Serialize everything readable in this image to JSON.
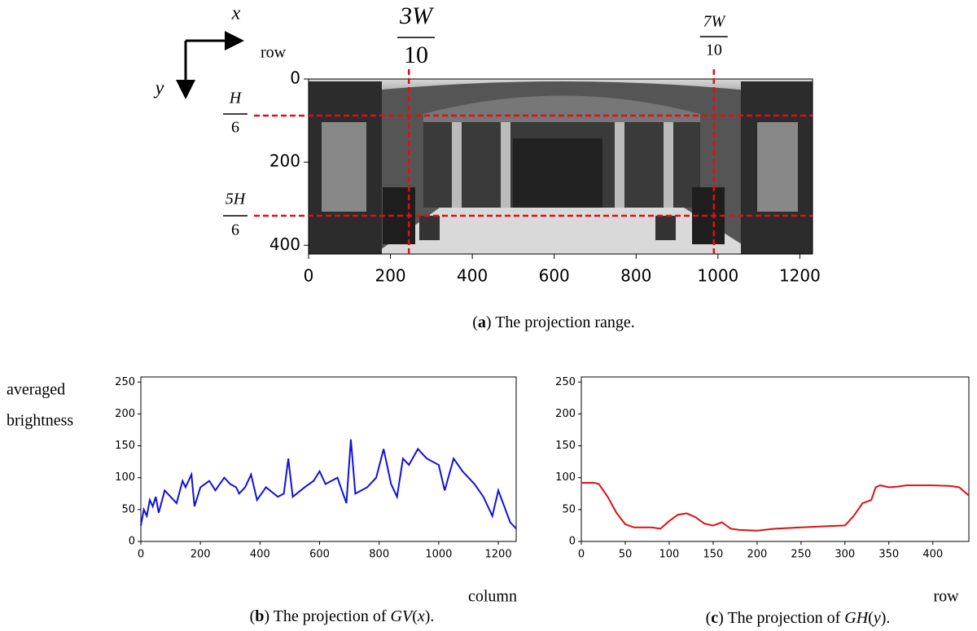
{
  "figure_a": {
    "axes_labels": {
      "x": "x",
      "y": "y"
    },
    "ylabel": "row",
    "xlim": [
      0,
      1231
    ],
    "ylim": [
      0,
      421
    ],
    "xticks": [
      0,
      200,
      400,
      600,
      800,
      1000,
      1200
    ],
    "yticks": [
      0,
      200,
      400
    ],
    "line_color": "#e01010",
    "vlines": [
      {
        "value": 245,
        "num": "3W",
        "den": "10"
      },
      {
        "value": 990,
        "num": "7W",
        "den": "10"
      }
    ],
    "hlines": [
      {
        "value": 88,
        "num": "H",
        "den": "6"
      },
      {
        "value": 329,
        "num": "5H",
        "den": "6"
      }
    ],
    "caption": [
      "(",
      "a",
      ") The projection range."
    ]
  },
  "chart_data": [
    {
      "type": "line",
      "ylabel": [
        "averaged",
        "brightness"
      ],
      "xlabel": "column",
      "xlim": [
        0,
        1260
      ],
      "ylim": [
        0,
        258
      ],
      "xticks": [
        0,
        200,
        400,
        600,
        800,
        1000,
        1200
      ],
      "yticks": [
        0,
        50,
        100,
        150,
        200,
        250
      ],
      "x": [
        0,
        10,
        20,
        30,
        40,
        50,
        60,
        80,
        100,
        120,
        140,
        150,
        170,
        180,
        200,
        230,
        250,
        280,
        300,
        320,
        330,
        350,
        370,
        390,
        420,
        460,
        480,
        495,
        510,
        550,
        580,
        600,
        620,
        660,
        690,
        705,
        720,
        760,
        790,
        815,
        840,
        860,
        880,
        900,
        930,
        960,
        1000,
        1020,
        1050,
        1080,
        1120,
        1150,
        1180,
        1200,
        1220,
        1240,
        1260
      ],
      "series": [
        {
          "color": "#1010e0",
          "values": [
            25,
            50,
            40,
            65,
            55,
            70,
            45,
            80,
            70,
            60,
            95,
            85,
            105,
            55,
            85,
            95,
            80,
            100,
            90,
            85,
            75,
            85,
            105,
            65,
            85,
            70,
            75,
            130,
            70,
            85,
            95,
            110,
            90,
            100,
            60,
            160,
            75,
            85,
            100,
            145,
            90,
            70,
            130,
            120,
            145,
            130,
            120,
            80,
            130,
            110,
            90,
            70,
            40,
            80,
            55,
            30,
            20
          ]
        }
      ],
      "caption": [
        "(",
        "b",
        ") The projection of ",
        "GV",
        "(",
        "x",
        ")."
      ]
    },
    {
      "type": "line",
      "xlabel": "row",
      "xlim": [
        0,
        441
      ],
      "ylim": [
        0,
        258
      ],
      "xticks": [
        0,
        50,
        100,
        150,
        200,
        250,
        300,
        350,
        400
      ],
      "yticks": [
        0,
        50,
        100,
        150,
        200,
        250
      ],
      "x": [
        0,
        15,
        20,
        30,
        40,
        50,
        60,
        70,
        80,
        90,
        100,
        110,
        120,
        130,
        140,
        150,
        160,
        170,
        180,
        200,
        220,
        250,
        280,
        300,
        310,
        320,
        330,
        335,
        340,
        350,
        360,
        370,
        400,
        420,
        430,
        441
      ],
      "series": [
        {
          "color": "#e01010",
          "values": [
            92,
            92,
            90,
            70,
            45,
            27,
            22,
            22,
            22,
            20,
            32,
            42,
            44,
            38,
            28,
            25,
            30,
            20,
            18,
            17,
            20,
            22,
            24,
            25,
            40,
            60,
            65,
            85,
            88,
            85,
            86,
            88,
            88,
            87,
            85,
            72
          ]
        }
      ],
      "caption": [
        "(",
        "c",
        ") The projection of ",
        "GH",
        "(",
        "y",
        ")."
      ]
    }
  ]
}
